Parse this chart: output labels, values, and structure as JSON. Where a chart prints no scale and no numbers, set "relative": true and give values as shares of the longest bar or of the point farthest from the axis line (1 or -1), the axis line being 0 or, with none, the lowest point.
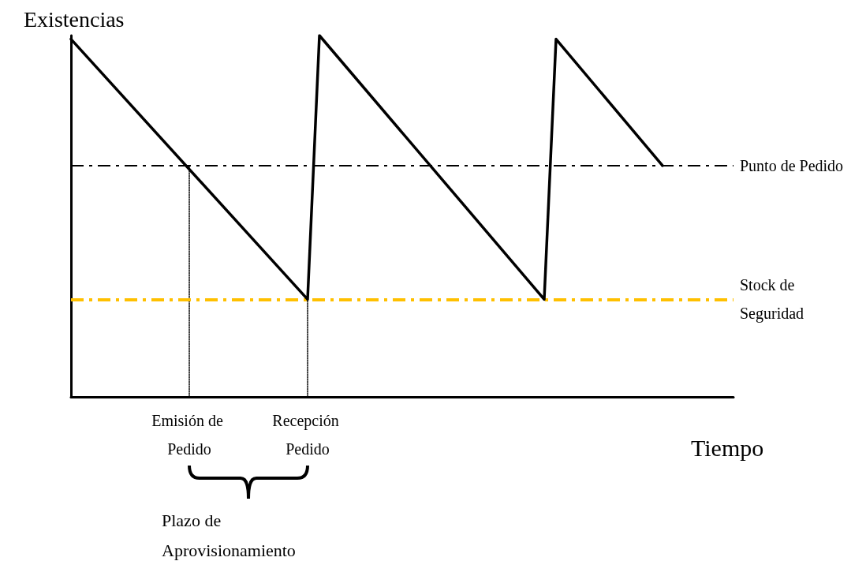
{
  "chart_data": {
    "type": "line",
    "relative": true,
    "ylabel": "Existencias",
    "xlabel": "Tiempo",
    "categories": [
      null,
      null,
      null,
      null,
      null,
      null,
      null,
      null,
      null,
      null,
      "Emisión de Pedido",
      null,
      null,
      null,
      null,
      null,
      null,
      null,
      null,
      null,
      "Recepción Pedido",
      null,
      null,
      null,
      null,
      null,
      null,
      null,
      null,
      null,
      null,
      null,
      null,
      null,
      null,
      null,
      null,
      null,
      null,
      null,
      null,
      null,
      null,
      null,
      null,
      null,
      null,
      null,
      null,
      null,
      null,
      null,
      null,
      null,
      null,
      null,
      null
    ],
    "tick_labels": "x",
    "grid": false,
    "marker": "none",
    "line_style": "solid",
    "series": [
      {
        "color": "#000000",
        "values": [
          0.99,
          null,
          null,
          null,
          null,
          null,
          null,
          null,
          null,
          null,
          null,
          null,
          null,
          null,
          null,
          null,
          null,
          null,
          null,
          null,
          0.27,
          1,
          null,
          null,
          null,
          null,
          null,
          null,
          null,
          null,
          null,
          null,
          null,
          null,
          null,
          null,
          null,
          null,
          null,
          null,
          0.27,
          0.99,
          null,
          null,
          null,
          null,
          null,
          null,
          null,
          null,
          0.64,
          null,
          null,
          null,
          null,
          null,
          null
        ]
      },
      {
        "color": "#000000",
        "line_style": "dotted",
        "x": [
          "Emisión de Pedido",
          "Emisión de Pedido"
        ],
        "values": [
          0,
          0.64
        ]
      },
      {
        "color": "#000000",
        "line_style": "dotted",
        "x": [
          "Recepción Pedido",
          "Recepción Pedido"
        ],
        "values": [
          0,
          0.27
        ]
      }
    ],
    "ref_lines": [
      {
        "axis": "y",
        "value": 0.64,
        "label": "Punto de Pedido",
        "color": "#000000",
        "line_style": "dashed"
      },
      {
        "axis": "y",
        "value": 0.27,
        "label": "Stock de Seguridad",
        "color": "#ffc000",
        "line_style": "dashed"
      }
    ],
    "annotations": [
      "Plazo de Aprovisionamiento"
    ]
  }
}
